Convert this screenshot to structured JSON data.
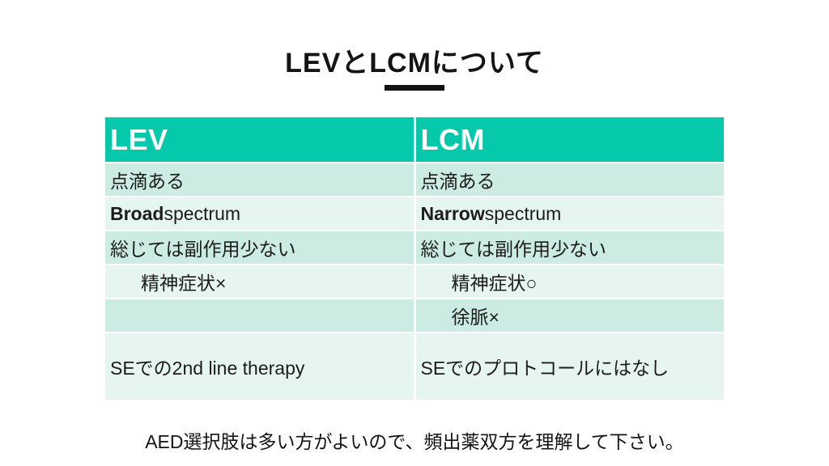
{
  "title": {
    "text": "LEVとLCMについて"
  },
  "table": {
    "headers": [
      {
        "label": "LEV"
      },
      {
        "label": "LCM"
      }
    ],
    "rows": [
      {
        "cells": [
          {
            "text": "点滴ある"
          },
          {
            "text": "点滴ある"
          }
        ]
      },
      {
        "cells": [
          {
            "bold": "Broad",
            "rest": " spectrum"
          },
          {
            "bold": "Narrow",
            "rest": " spectrum"
          }
        ]
      },
      {
        "cells": [
          {
            "text": "総じては副作用少ない"
          },
          {
            "text": "総じては副作用少ない"
          }
        ]
      },
      {
        "cells": [
          {
            "text": "精神症状×",
            "indent": true
          },
          {
            "text": "精神症状○",
            "indent": true
          }
        ]
      },
      {
        "cells": [
          {
            "text": ""
          },
          {
            "text": "徐脈×",
            "indent": true
          }
        ]
      },
      {
        "cells": [
          {
            "text": "SEでの2nd line therapy"
          },
          {
            "text": "SEでのプロトコールにはなし"
          }
        ]
      }
    ]
  },
  "footer": {
    "text": "AED選択肢は多い方がよいので、頻出薬双方を理解して下さい。"
  },
  "colors": {
    "header_bg": "#05C9AA",
    "band_dark": "#CBEBE3",
    "band_light": "#E7F5F1",
    "header_text": "#ffffff",
    "body_text": "#1c1c1c",
    "title_text": "#141414",
    "underline": "#111111",
    "page_bg": "#ffffff"
  }
}
